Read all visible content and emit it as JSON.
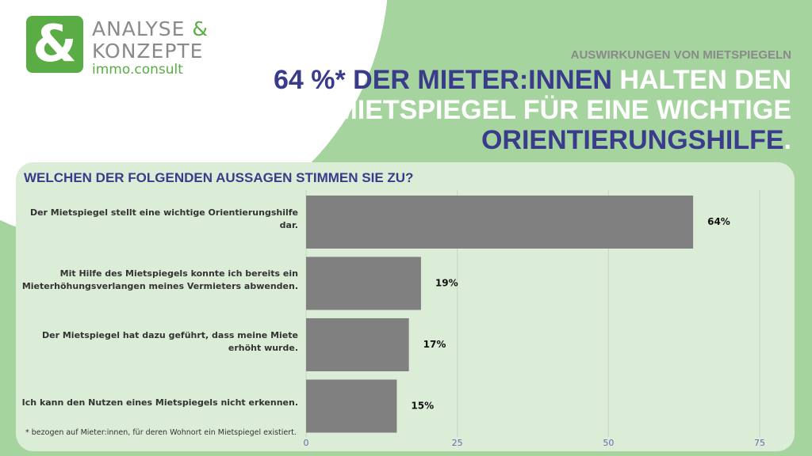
{
  "logo": {
    "symbol": "&",
    "line1": "ANALYSE",
    "line1_amp": "&",
    "line2": "KONZEPTE",
    "line3": "immo.consult"
  },
  "header": {
    "kicker": "AUSWIRKUNGEN VON MIETSPIEGELN",
    "headline_lines": [
      [
        {
          "text": "64 %* DER MIETER:INNEN",
          "color": "#3b3b8c"
        },
        {
          "text": " HALTEN DEN",
          "color": "#ffffff"
        }
      ],
      [
        {
          "text": "MIETSPIEGEL FÜR EINE WICHTIGE",
          "color": "#ffffff"
        }
      ],
      [
        {
          "text": "ORIENTIERUNGSHILFE",
          "color": "#3b3b8c"
        },
        {
          "text": ".",
          "color": "#ffffff"
        }
      ]
    ]
  },
  "chart_data": {
    "type": "hbar",
    "title": "WELCHEN DER FOLGENDEN AUSSAGEN STIMMEN SIE ZU?",
    "categories": [
      "Der Mietspiegel stellt eine wichtige Orientierungshilfe dar.",
      "Mit Hilfe des Mietspiegels konnte ich bereits ein Mieterhöhungsverlangen meines Vermieters abwenden.",
      "Der Mietspiegel hat dazu geführt, dass meine Miete erhöht wurde.",
      "Ich kann den Nutzen eines Mietspiegels nicht erkennen."
    ],
    "values": [
      64,
      19,
      17,
      15
    ],
    "value_labels": [
      "64%",
      "19%",
      "17%",
      "15%"
    ],
    "color": "#808080",
    "xlim": [
      0,
      75
    ],
    "xticks": [
      0,
      25,
      50,
      75
    ],
    "grid": true
  },
  "footnote": "* bezogen auf Mieter:innen, für deren Wohnort ein Mietspiegel existiert."
}
